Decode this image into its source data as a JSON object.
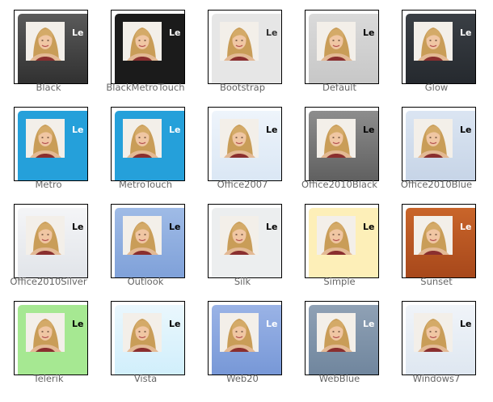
{
  "skins": [
    {
      "name": "Black",
      "panel_text": "Le",
      "colors": {
        "bg": "linear-gradient(#5a5a5a,#2e2e2e)",
        "text": "#ffffff"
      }
    },
    {
      "name": "BlackMetroTouch",
      "panel_text": "Le",
      "colors": {
        "bg": "#1b1b1b",
        "text": "#ffffff"
      }
    },
    {
      "name": "Bootstrap",
      "panel_text": "Le",
      "colors": {
        "bg": "#e6e6e6",
        "text": "#333333"
      }
    },
    {
      "name": "Default",
      "panel_text": "Le",
      "colors": {
        "bg": "linear-gradient(#dadada,#c6c6c6)",
        "text": "#000000"
      }
    },
    {
      "name": "Glow",
      "panel_text": "Le",
      "colors": {
        "bg": "linear-gradient(#3a3f45,#24282d)",
        "text": "#ffffff"
      }
    },
    {
      "name": "Metro",
      "panel_text": "Le",
      "colors": {
        "bg": "#25a0da",
        "text": "#ffffff"
      }
    },
    {
      "name": "MetroTouch",
      "panel_text": "Le",
      "colors": {
        "bg": "#25a0da",
        "text": "#ffffff"
      }
    },
    {
      "name": "Office2007",
      "panel_text": "Le",
      "colors": {
        "bg": "linear-gradient(#eef4fb,#d9e6f4)",
        "text": "#000000"
      }
    },
    {
      "name": "Office2010Black",
      "panel_text": "Le",
      "colors": {
        "bg": "linear-gradient(#8d8d8d,#5d5d5d)",
        "text": "#000000"
      }
    },
    {
      "name": "Office2010Blue",
      "panel_text": "Le",
      "colors": {
        "bg": "linear-gradient(#dbe5f2,#c5d3e6)",
        "text": "#000000"
      }
    },
    {
      "name": "Office2010Silver",
      "panel_text": "Le",
      "colors": {
        "bg": "linear-gradient(#f4f5f7,#e0e3e8)",
        "text": "#000000"
      }
    },
    {
      "name": "Outlook",
      "panel_text": "Le",
      "colors": {
        "bg": "linear-gradient(#9fbbe6,#7d9fd8)",
        "text": "#000000"
      }
    },
    {
      "name": "Silk",
      "panel_text": "Le",
      "colors": {
        "bg": "#eceeef",
        "text": "#000000"
      }
    },
    {
      "name": "Simple",
      "panel_text": "Le",
      "colors": {
        "bg": "#fdefb8",
        "text": "#000000"
      }
    },
    {
      "name": "Sunset",
      "panel_text": "Le",
      "colors": {
        "bg": "linear-gradient(#c9652a,#a5461a)",
        "text": "#ffffff"
      }
    },
    {
      "name": "Telerik",
      "panel_text": "Le",
      "colors": {
        "bg": "#a6e892",
        "text": "#000000"
      }
    },
    {
      "name": "Vista",
      "panel_text": "Le",
      "colors": {
        "bg": "linear-gradient(#eaf7fd,#cfeefb)",
        "text": "#000000"
      }
    },
    {
      "name": "Web20",
      "panel_text": "Le",
      "colors": {
        "bg": "linear-gradient(#9ab3e6,#7596d6)",
        "text": "#ffffff"
      }
    },
    {
      "name": "WebBlue",
      "panel_text": "Le",
      "colors": {
        "bg": "linear-gradient(#8fa1b5,#6e849c)",
        "text": "#ffffff"
      }
    },
    {
      "name": "Windows7",
      "panel_text": "Le",
      "colors": {
        "bg": "linear-gradient(#f0f4f9,#dde6f0)",
        "text": "#000000"
      }
    }
  ]
}
